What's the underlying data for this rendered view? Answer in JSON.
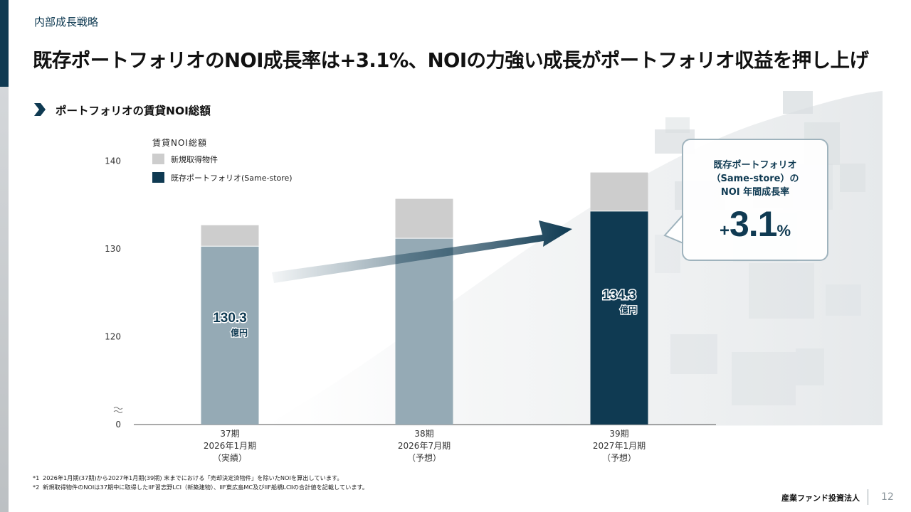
{
  "header": {
    "section_label": "内部成長戦略",
    "title": "既存ポートフォリオのNOI成長率は+3.1%、NOIの力強い成長がポートフォリオ収益を押し上げ",
    "subheading": "ポートフォリオの賃貸NOI総額"
  },
  "chart_data": {
    "type": "bar",
    "stacked": true,
    "title": "",
    "legend_title": "賃貸NOI総額",
    "legend_position": "top-left",
    "xlabel": "",
    "ylabel": "",
    "y_axis_break": true,
    "y_ticks": [
      0,
      120,
      130,
      140
    ],
    "ylim": [
      110,
      140
    ],
    "grid": false,
    "categories": [
      [
        "37期",
        "2026年1月期",
        "（実績）"
      ],
      [
        "38期",
        "2026年7月期",
        "（予想）"
      ],
      [
        "39期",
        "2027年1月期",
        "（予想）"
      ]
    ],
    "series": [
      {
        "name": "既存ポートフォリオ(Same-store)",
        "values": [
          130.3,
          131.2,
          134.3
        ],
        "color": "#95aab5",
        "highlight_color": "#0f3a52"
      },
      {
        "name": "新規取得物件",
        "values": [
          2.4,
          4.5,
          4.4
        ],
        "color": "#cdcdcd"
      }
    ],
    "data_labels": [
      {
        "category_index": 0,
        "value": "130.3",
        "unit": "億円"
      },
      {
        "category_index": 2,
        "value": "134.3",
        "unit": "億円"
      }
    ],
    "annotation": {
      "lines": [
        "既存ポートフォリオ",
        "（Same-store）の",
        "NOI 年間成長率"
      ],
      "value_sign": "+",
      "value": "3.1",
      "value_unit": "%"
    }
  },
  "footnotes": [
    {
      "mark": "*1",
      "text": "2026年1月期(37期)から2027年1月期(39期) 末までにおける「売却決定済物件」を除いたNOIを算出しています。"
    },
    {
      "mark": "*2",
      "text": "新規取得物件のNOIは37期中に取得したIIF習志野LCⅠ（新築建物）、IIF東広島MC及びIIF船橋LCⅡの合計値を記載しています。"
    }
  ],
  "footer": {
    "company": "産業ファンド投資法人",
    "page_number": "12"
  },
  "colors": {
    "brand_navy": "#0f3a52",
    "bar_grey_blue": "#95aab5",
    "bar_light_grey": "#cdcdcd",
    "callout_border": "#9fb3bd"
  }
}
